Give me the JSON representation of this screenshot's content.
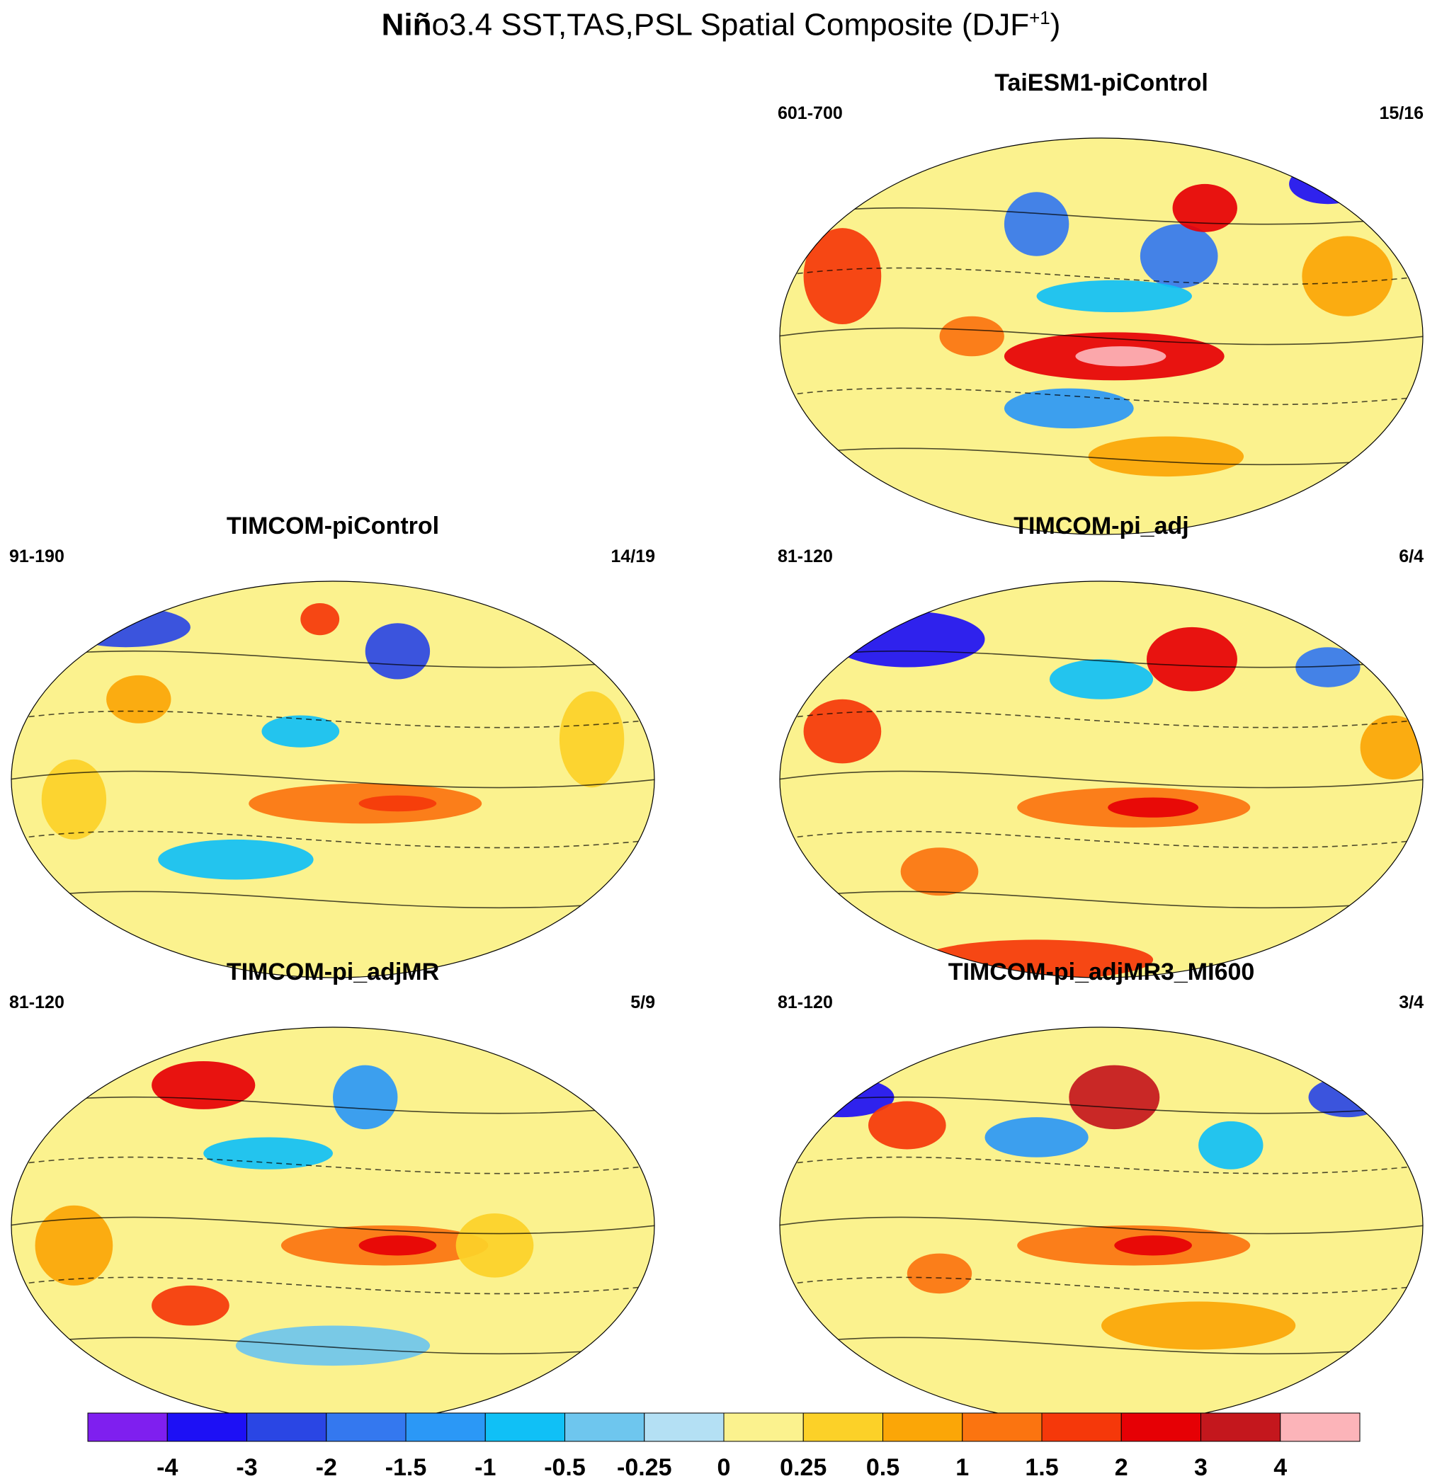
{
  "figure": {
    "title_bold": "Niñ",
    "title_rest": "o3.4 SST,TAS,PSL Spatial Composite (DJF",
    "title_sup": "+1",
    "title_close": ")"
  },
  "panels": [
    {
      "id": "taiesm1",
      "title": "TaiESM1-piControl",
      "years": "601-700",
      "count": "15/16"
    },
    {
      "id": "timcom-pi",
      "title": "TIMCOM-piControl",
      "years": "91-190",
      "count": "14/19"
    },
    {
      "id": "timcom-adj",
      "title": "TIMCOM-pi_adj",
      "years": "81-120",
      "count": "6/4"
    },
    {
      "id": "timcom-adjmr",
      "title": "TIMCOM-pi_adjMR",
      "years": "81-120",
      "count": "5/9"
    },
    {
      "id": "timcom-adjmr3",
      "title": "TIMCOM-pi_adjMR3_MI600",
      "years": "81-120",
      "count": "3/4"
    }
  ],
  "colorbar": {
    "labels": [
      "-4",
      "-3",
      "-2",
      "-1.5",
      "-1",
      "-0.5",
      "-0.25",
      "0",
      "0.25",
      "0.5",
      "1",
      "1.5",
      "2",
      "3",
      "4"
    ],
    "colors": [
      "#7f1fef",
      "#1d10f5",
      "#2a46e4",
      "#3478ef",
      "#2b98f6",
      "#10c0f6",
      "#6ec6ee",
      "#b4e0f4",
      "#fbf28e",
      "#fcd128",
      "#fba607",
      "#fb7410",
      "#f5380a",
      "#e60005",
      "#c4171d",
      "#fcb4b9"
    ]
  }
}
